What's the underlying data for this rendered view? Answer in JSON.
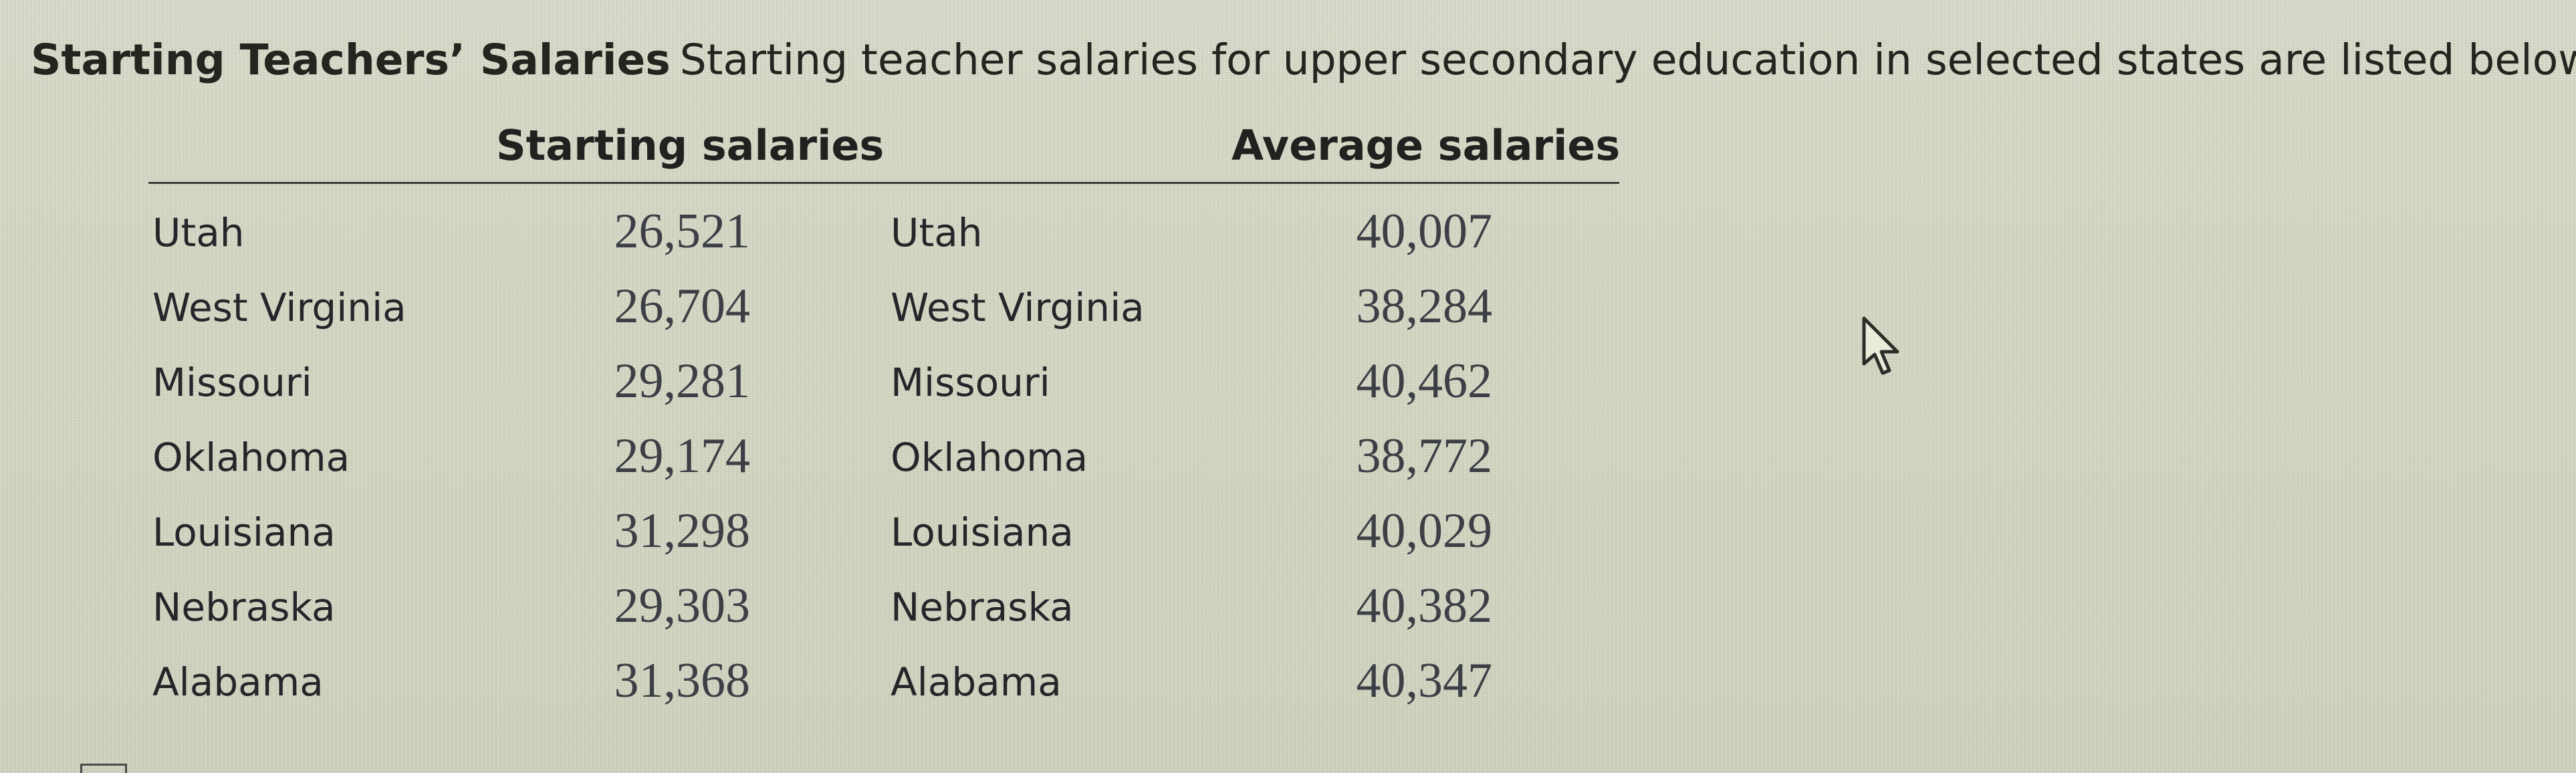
{
  "prompt": {
    "heading": "Starting Teachers’ Salaries",
    "text": "Starting teacher salaries for upper secondary education in selected states are listed below."
  },
  "table": {
    "headers": {
      "starting": "Starting salaries",
      "average": "Average salaries"
    },
    "rows": [
      {
        "state_left": "Utah",
        "starting": "26,521",
        "state_right": "Utah",
        "average": "40,007"
      },
      {
        "state_left": "West Virginia",
        "starting": "26,704",
        "state_right": "West Virginia",
        "average": "38,284"
      },
      {
        "state_left": "Missouri",
        "starting": "29,281",
        "state_right": "Missouri",
        "average": "40,462"
      },
      {
        "state_left": "Oklahoma",
        "starting": "29,174",
        "state_right": "Oklahoma",
        "average": "38,772"
      },
      {
        "state_left": "Louisiana",
        "starting": "31,298",
        "state_right": "Louisiana",
        "average": "40,029"
      },
      {
        "state_left": "Nebraska",
        "starting": "29,303",
        "state_right": "Nebraska",
        "average": "40,382"
      },
      {
        "state_left": "Alabama",
        "starting": "31,368",
        "state_right": "Alabama",
        "average": "40,347"
      }
    ]
  },
  "icons": {
    "cursor": "mouse-pointer-icon"
  },
  "colors": {
    "background": "#d5d7c4",
    "text": "#1b1d1a"
  }
}
